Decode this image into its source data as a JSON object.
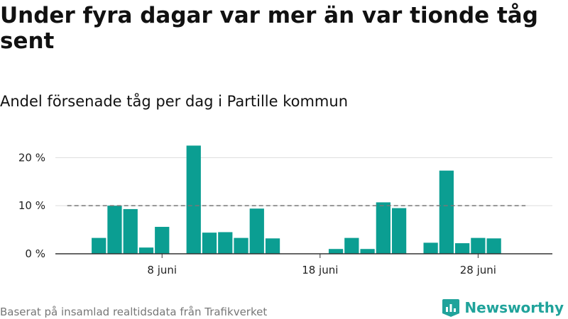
{
  "header": {
    "title": "Under fyra dagar var mer än var tionde tåg sent",
    "subtitle": "Andel försenade tåg per dag i Partille kommun"
  },
  "footer": {
    "source": "Baserat på insamlad realtidsdata från Trafikverket",
    "brand": "Newsworthy"
  },
  "colors": {
    "bar": "#0b9e92",
    "reference_line": "#777777",
    "grid": "#dddddd",
    "brand": "#20a39b"
  },
  "chart_data": {
    "type": "bar",
    "title": "Andel försenade tåg per dag i Partille kommun",
    "xlabel": "",
    "ylabel": "",
    "x_unit": "day of June",
    "y_unit": "%",
    "x": [
      4,
      5,
      6,
      7,
      8,
      9,
      10,
      11,
      12,
      13,
      14,
      15,
      16,
      17,
      18,
      19,
      20,
      21,
      22,
      23,
      24,
      25,
      26,
      27,
      28,
      29
    ],
    "values": [
      3.3,
      10.0,
      9.3,
      1.3,
      5.6,
      0,
      22.5,
      4.4,
      4.5,
      3.3,
      9.4,
      3.2,
      0,
      0,
      0,
      1.0,
      3.3,
      1.0,
      10.7,
      9.5,
      0,
      2.3,
      17.3,
      2.2,
      3.3,
      3.2
    ],
    "reference_line": {
      "value": 10,
      "style": "dashed",
      "x_range": [
        2,
        31
      ]
    },
    "ylim": [
      0,
      23
    ],
    "yticks": [
      0,
      10,
      20
    ],
    "ytick_labels": [
      "0 %",
      "10 %",
      "20 %"
    ],
    "xticks": [
      8,
      18,
      28
    ],
    "xtick_labels": [
      "8 juni",
      "18 juni",
      "28 juni"
    ],
    "xlim": [
      1.25,
      32.7
    ],
    "grid": true
  }
}
